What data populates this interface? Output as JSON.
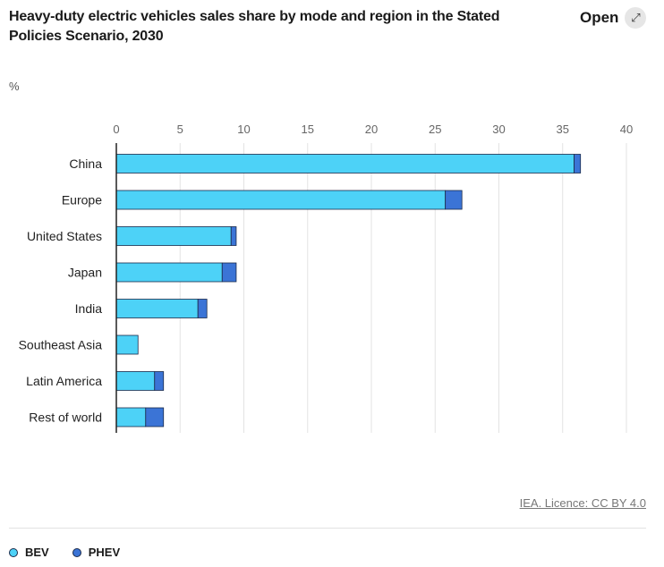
{
  "header": {
    "title": "Heavy-duty electric vehicles sales share by mode and region in the Stated Policies Scenario, 2030",
    "open_label": "Open",
    "open_icon": "expand-icon"
  },
  "source": "IEA. Licence: CC BY 4.0",
  "colors": {
    "bev": "#4dd2f7",
    "phev": "#3b74d6"
  },
  "chart_data": {
    "type": "bar",
    "orientation": "horizontal",
    "stacked": true,
    "title": "Heavy-duty electric vehicles sales share by mode and region in the Stated Policies Scenario, 2030",
    "unit": "%",
    "categories": [
      "China",
      "Europe",
      "United States",
      "Japan",
      "India",
      "Southeast Asia",
      "Latin America",
      "Rest of world"
    ],
    "series": [
      {
        "name": "BEV",
        "values": [
          35.9,
          25.8,
          9.0,
          8.3,
          6.4,
          1.7,
          3.0,
          2.3
        ]
      },
      {
        "name": "PHEV",
        "values": [
          0.5,
          1.3,
          0.4,
          1.1,
          0.7,
          0.0,
          0.7,
          1.4
        ]
      }
    ],
    "xlim": [
      0,
      40
    ],
    "xticks": [
      "0",
      "5",
      "10",
      "15",
      "20",
      "25",
      "30",
      "35",
      "40"
    ],
    "grid": "vertical",
    "axis_position": "top",
    "legend_position": "bottom-left"
  }
}
